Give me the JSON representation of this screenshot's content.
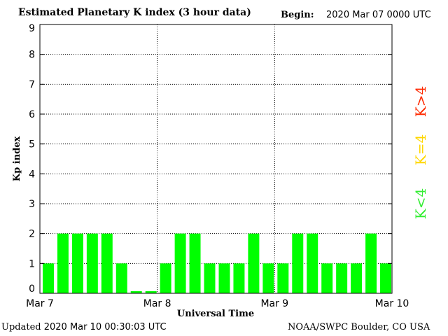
{
  "header": {
    "title": "Estimated Planetary K index (3 hour data)",
    "begin_label": "Begin:",
    "begin_value": "2020 Mar 07 0000 UTC"
  },
  "footer": {
    "updated_label": "Updated",
    "updated_value": "2020 Mar 10 00:30:03 UTC",
    "credit": "NOAA/SWPC Boulder, CO USA"
  },
  "legend": {
    "items": [
      {
        "label": "K>4",
        "color": "#ff2a00"
      },
      {
        "label": "K=4",
        "color": "#ffd700"
      },
      {
        "label": "K<4",
        "color": "#33ee33"
      }
    ]
  },
  "chart_data": {
    "type": "bar",
    "title": "Estimated Planetary K index (3 hour data)",
    "xlabel": "Universal Time",
    "ylabel": "Kp index",
    "ylim": [
      0,
      9
    ],
    "yticks": [
      0,
      1,
      2,
      3,
      4,
      5,
      6,
      7,
      8,
      9
    ],
    "x_tick_labels": [
      "Mar 7",
      "Mar 8",
      "Mar 9",
      "Mar 10"
    ],
    "grid": true,
    "bar_color": "#00ff00",
    "categories": [
      "Mar 7 00:00",
      "Mar 7 03:00",
      "Mar 7 06:00",
      "Mar 7 09:00",
      "Mar 7 12:00",
      "Mar 7 15:00",
      "Mar 7 18:00",
      "Mar 7 21:00",
      "Mar 8 00:00",
      "Mar 8 03:00",
      "Mar 8 06:00",
      "Mar 8 09:00",
      "Mar 8 12:00",
      "Mar 8 15:00",
      "Mar 8 18:00",
      "Mar 8 21:00",
      "Mar 9 00:00",
      "Mar 9 03:00",
      "Mar 9 06:00",
      "Mar 9 09:00",
      "Mar 9 12:00",
      "Mar 9 15:00",
      "Mar 9 18:00",
      "Mar 9 21:00"
    ],
    "values": [
      1,
      2,
      2,
      2,
      2,
      1,
      0.07,
      0.07,
      1,
      2,
      2,
      1,
      1,
      1,
      2,
      1,
      1,
      2,
      2,
      1,
      1,
      1,
      2,
      1
    ]
  }
}
